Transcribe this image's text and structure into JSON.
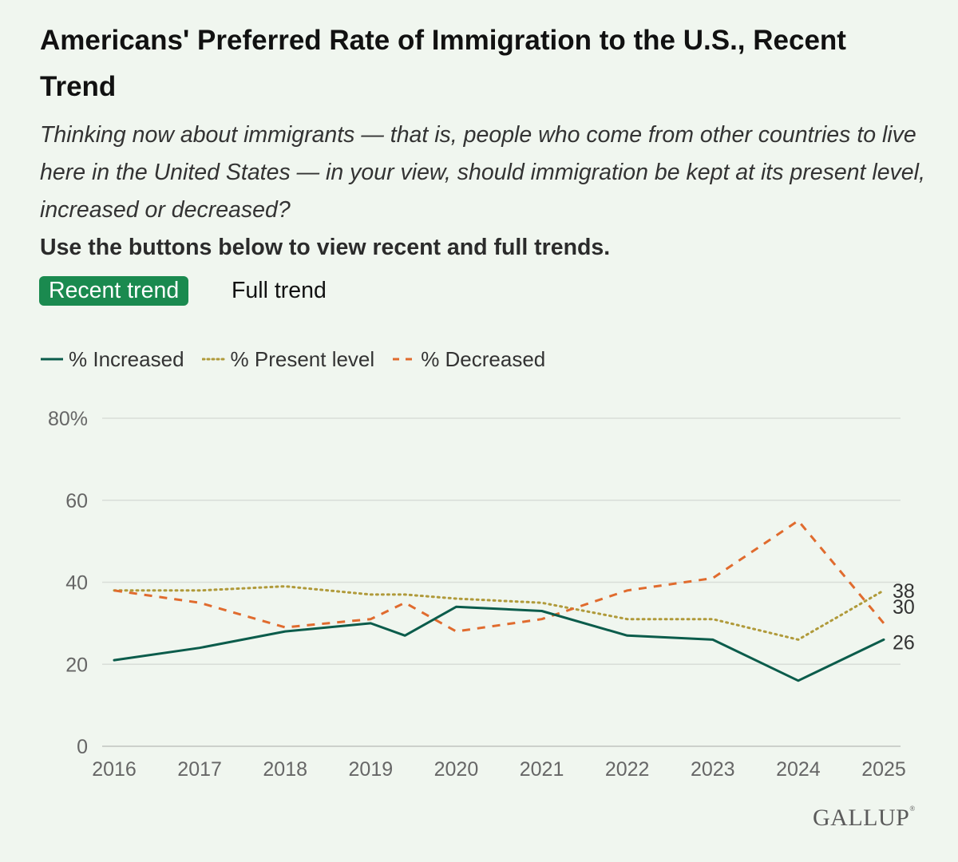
{
  "header": {
    "title": "Americans' Preferred Rate of Immigration to the U.S., Recent Trend",
    "subtitle": "Thinking now about immigrants — that is, people who come from other countries to live here in the United States — in your view, should immigration be kept at its present level, increased or decreased?",
    "instruction": "Use the buttons below to view recent and full trends."
  },
  "buttons": {
    "recent_label": "Recent trend",
    "full_label": "Full trend"
  },
  "colors": {
    "increased": "#0b5c4b",
    "present": "#b09a3a",
    "decreased": "#e06b2e",
    "grid": "#d9ddd8",
    "axis_text": "#666666",
    "active_button": "#1a8a4f"
  },
  "chart_data": {
    "type": "line",
    "title": "Americans' Preferred Rate of Immigration to the U.S., Recent Trend",
    "xlabel": "",
    "ylabel": "",
    "ylim": [
      0,
      80
    ],
    "yticks": [
      0,
      20,
      40,
      60,
      80
    ],
    "ytick_labels": [
      "0",
      "20",
      "40",
      "60",
      "80%"
    ],
    "xlim": [
      2016,
      2025
    ],
    "xticks": [
      "2016",
      "2017",
      "2018",
      "2019",
      "2020",
      "2021",
      "2022",
      "2023",
      "2024",
      "2025"
    ],
    "grid": true,
    "legend_position": "top-left",
    "series": [
      {
        "name": "% Increased",
        "key": "increased",
        "style": "solid",
        "points": [
          [
            2016,
            21
          ],
          [
            2017,
            24
          ],
          [
            2018,
            28
          ],
          [
            2019,
            30
          ],
          [
            2019.4,
            27
          ],
          [
            2020,
            34
          ],
          [
            2021,
            33
          ],
          [
            2022,
            27
          ],
          [
            2023,
            26
          ],
          [
            2024,
            16
          ],
          [
            2025,
            26
          ]
        ],
        "end_label": "26"
      },
      {
        "name": "% Present level",
        "key": "present",
        "style": "dotted",
        "points": [
          [
            2016,
            38
          ],
          [
            2017,
            38
          ],
          [
            2018,
            39
          ],
          [
            2019,
            37
          ],
          [
            2019.4,
            37
          ],
          [
            2020,
            36
          ],
          [
            2021,
            35
          ],
          [
            2022,
            31
          ],
          [
            2023,
            31
          ],
          [
            2024,
            26
          ],
          [
            2025,
            38
          ]
        ],
        "end_label": "38"
      },
      {
        "name": "% Decreased",
        "key": "decreased",
        "style": "dashed",
        "points": [
          [
            2016,
            38
          ],
          [
            2017,
            35
          ],
          [
            2018,
            29
          ],
          [
            2019,
            31
          ],
          [
            2019.4,
            35
          ],
          [
            2020,
            28
          ],
          [
            2021,
            31
          ],
          [
            2022,
            38
          ],
          [
            2023,
            41
          ],
          [
            2024,
            55
          ],
          [
            2025,
            30
          ]
        ],
        "end_label": "30"
      }
    ]
  },
  "footer": {
    "brand": "GALLUP"
  }
}
